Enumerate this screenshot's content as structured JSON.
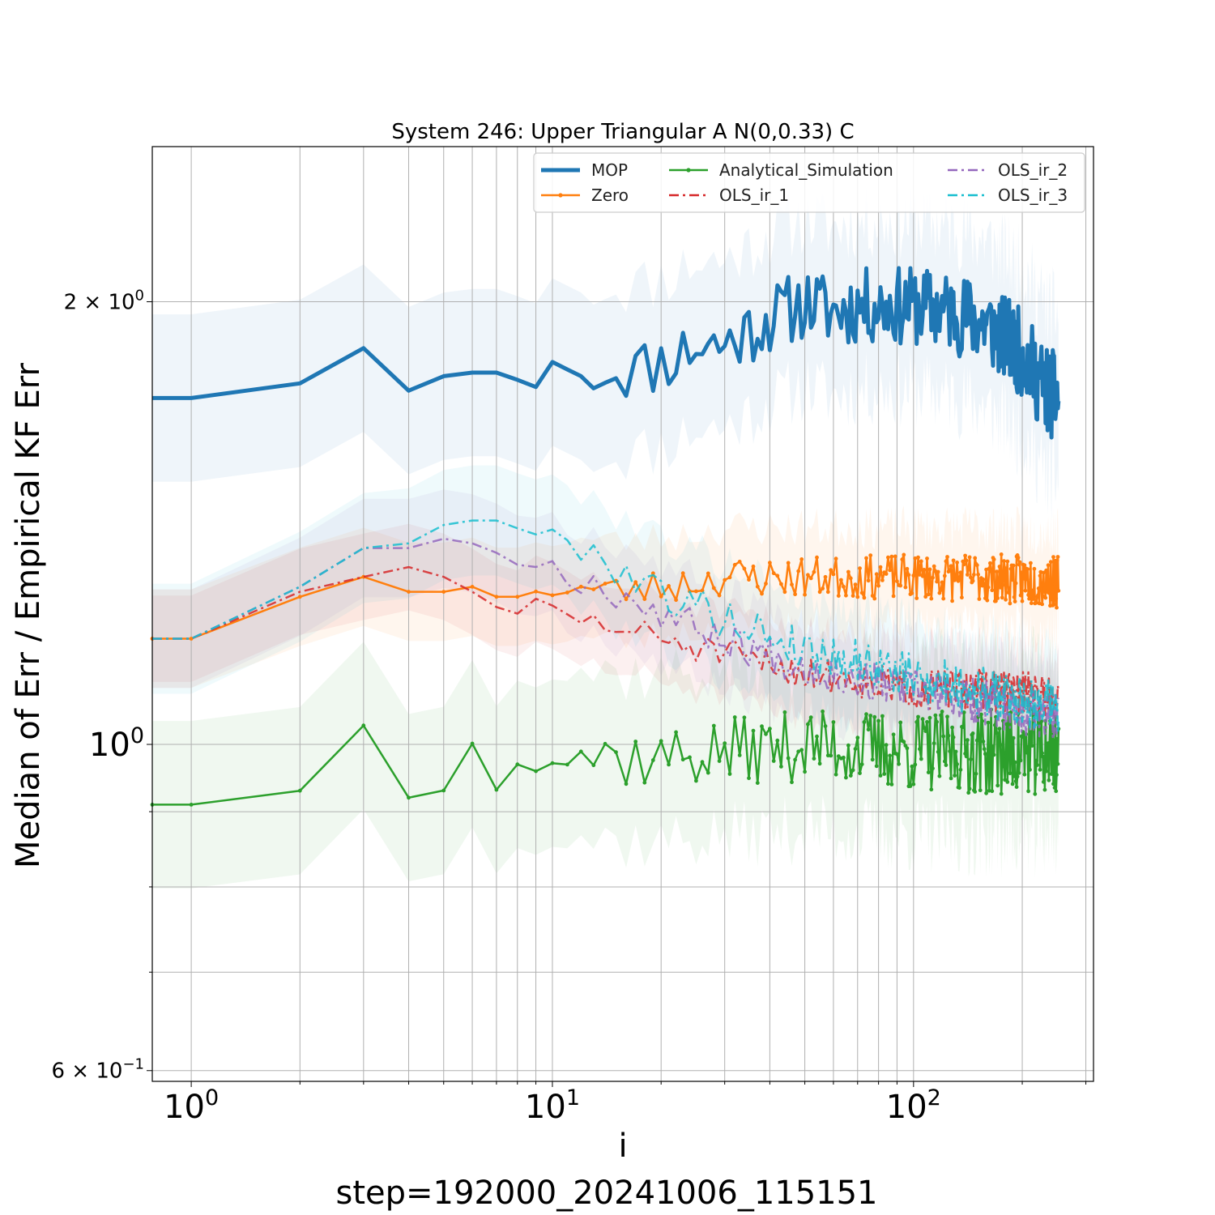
{
  "chart_data": {
    "type": "line",
    "title": "System 246: Upper Triangular A N(0,0.33) C",
    "xlabel": "i",
    "ylabel": "Median of Err / Empirical KF Err",
    "footer": "step=192000_20241006_115151",
    "xscale": "log",
    "yscale": "log",
    "xlim": [
      0.78,
      315
    ],
    "ylim": [
      0.59,
      2.55
    ],
    "grid": true,
    "legend_position": "top-right",
    "x_major_ticks": [
      {
        "value": 1,
        "label": "10",
        "exp": "0"
      },
      {
        "value": 10,
        "label": "10",
        "exp": "1"
      },
      {
        "value": 100,
        "label": "10",
        "exp": "2"
      }
    ],
    "y_ticks": [
      {
        "value": 2.0,
        "label": "2 × 10",
        "exp": "0"
      },
      {
        "value": 1.0,
        "label": "10",
        "exp": "0"
      },
      {
        "value": 0.6,
        "label": "6 × 10",
        "exp": "−1"
      }
    ],
    "series": [
      {
        "name": "MOP",
        "color": "#1f77b4",
        "style": "solid",
        "width": 5,
        "marker": false,
        "start": 1.72,
        "band": 0.14,
        "anchors": [
          [
            0.78,
            1.72
          ],
          [
            1,
            1.72
          ],
          [
            2,
            1.76
          ],
          [
            3,
            1.86
          ],
          [
            4,
            1.74
          ],
          [
            5,
            1.78
          ],
          [
            6,
            1.79
          ],
          [
            7,
            1.79
          ],
          [
            8,
            1.77
          ],
          [
            9,
            1.75
          ],
          [
            10,
            1.82
          ],
          [
            12,
            1.78
          ],
          [
            14,
            1.8
          ],
          [
            17,
            1.8
          ],
          [
            20,
            1.82
          ],
          [
            25,
            1.87
          ],
          [
            30,
            1.87
          ],
          [
            40,
            1.95
          ],
          [
            50,
            2.0
          ],
          [
            60,
            1.97
          ],
          [
            70,
            1.99
          ],
          [
            80,
            1.99
          ],
          [
            100,
            1.99
          ],
          [
            130,
            1.97
          ],
          [
            160,
            1.93
          ],
          [
            200,
            1.85
          ],
          [
            230,
            1.75
          ],
          [
            252,
            1.72
          ]
        ],
        "noise_start": 13,
        "noise_amp": 0.04,
        "seed": 11
      },
      {
        "name": "Zero",
        "color": "#ff7f0e",
        "style": "solid",
        "width": 2.5,
        "marker": true,
        "band": 0.08,
        "anchors": [
          [
            0.78,
            1.18
          ],
          [
            1,
            1.18
          ],
          [
            2,
            1.26
          ],
          [
            3,
            1.3
          ],
          [
            4,
            1.27
          ],
          [
            5,
            1.27
          ],
          [
            6,
            1.28
          ],
          [
            7,
            1.26
          ],
          [
            8,
            1.26
          ],
          [
            10,
            1.28
          ],
          [
            15,
            1.27
          ],
          [
            20,
            1.28
          ],
          [
            30,
            1.3
          ],
          [
            50,
            1.3
          ],
          [
            100,
            1.3
          ],
          [
            150,
            1.3
          ],
          [
            252,
            1.29
          ]
        ],
        "noise_start": 10,
        "noise_amp": 0.022,
        "seed": 23
      },
      {
        "name": "Analytical_Simulation",
        "color": "#2ca02c",
        "style": "solid",
        "width": 2.5,
        "marker": true,
        "band": 0.14,
        "anchors": [
          [
            0.78,
            0.91
          ],
          [
            1,
            0.91
          ],
          [
            2,
            0.93
          ],
          [
            3,
            1.03
          ],
          [
            4,
            0.92
          ],
          [
            5,
            0.95
          ],
          [
            6,
            0.99
          ],
          [
            7,
            0.96
          ],
          [
            8,
            1.01
          ],
          [
            10,
            0.99
          ],
          [
            15,
            0.98
          ],
          [
            20,
            0.98
          ],
          [
            30,
            0.99
          ],
          [
            50,
            1.0
          ],
          [
            100,
            0.99
          ],
          [
            150,
            0.99
          ],
          [
            252,
            0.99
          ]
        ],
        "noise_start": 5,
        "noise_amp": 0.035,
        "seed": 37
      },
      {
        "name": "OLS_ir_1",
        "color": "#d62728",
        "style": "dashdot",
        "width": 2.5,
        "marker": false,
        "band": 0.07,
        "anchors": [
          [
            0.78,
            1.18
          ],
          [
            1,
            1.18
          ],
          [
            2,
            1.27
          ],
          [
            3,
            1.3
          ],
          [
            4,
            1.32
          ],
          [
            5,
            1.3
          ],
          [
            6,
            1.27
          ],
          [
            7,
            1.24
          ],
          [
            8,
            1.24
          ],
          [
            10,
            1.23
          ],
          [
            15,
            1.2
          ],
          [
            20,
            1.18
          ],
          [
            30,
            1.15
          ],
          [
            50,
            1.12
          ],
          [
            80,
            1.1
          ],
          [
            100,
            1.09
          ],
          [
            150,
            1.09
          ],
          [
            252,
            1.08
          ]
        ],
        "noise_start": 8,
        "noise_amp": 0.018,
        "seed": 51
      },
      {
        "name": "OLS_ir_2",
        "color": "#9467bd",
        "style": "dashdot",
        "width": 2.5,
        "marker": false,
        "band": 0.08,
        "anchors": [
          [
            0.78,
            1.18
          ],
          [
            1,
            1.18
          ],
          [
            2,
            1.28
          ],
          [
            3,
            1.36
          ],
          [
            4,
            1.36
          ],
          [
            5,
            1.38
          ],
          [
            6,
            1.37
          ],
          [
            7,
            1.35
          ],
          [
            8,
            1.34
          ],
          [
            10,
            1.32
          ],
          [
            15,
            1.27
          ],
          [
            20,
            1.23
          ],
          [
            30,
            1.18
          ],
          [
            50,
            1.13
          ],
          [
            80,
            1.1
          ],
          [
            100,
            1.09
          ],
          [
            150,
            1.07
          ],
          [
            252,
            1.04
          ]
        ],
        "noise_start": 8,
        "noise_amp": 0.02,
        "seed": 67
      },
      {
        "name": "OLS_ir_3",
        "color": "#17becf",
        "style": "dashdot",
        "width": 2.5,
        "marker": false,
        "band": 0.09,
        "anchors": [
          [
            0.78,
            1.18
          ],
          [
            1,
            1.18
          ],
          [
            2,
            1.28
          ],
          [
            3,
            1.36
          ],
          [
            4,
            1.37
          ],
          [
            5,
            1.41
          ],
          [
            6,
            1.42
          ],
          [
            7,
            1.42
          ],
          [
            8,
            1.42
          ],
          [
            10,
            1.37
          ],
          [
            12,
            1.37
          ],
          [
            15,
            1.32
          ],
          [
            20,
            1.27
          ],
          [
            30,
            1.22
          ],
          [
            50,
            1.16
          ],
          [
            80,
            1.13
          ],
          [
            100,
            1.11
          ],
          [
            150,
            1.09
          ],
          [
            252,
            1.06
          ]
        ],
        "noise_start": 8,
        "noise_amp": 0.022,
        "seed": 79
      }
    ]
  }
}
